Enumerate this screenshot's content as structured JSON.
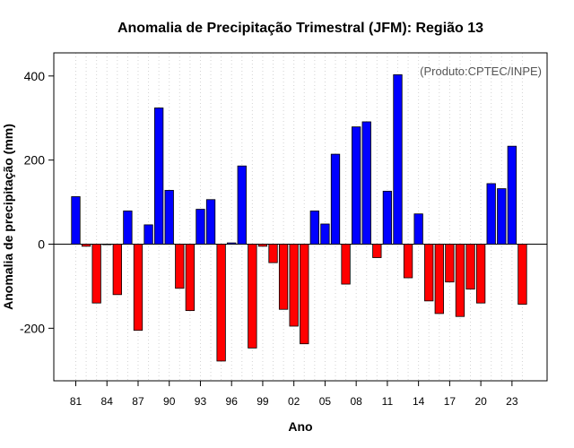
{
  "chart_data": {
    "type": "bar",
    "title": "Anomalia de Precipitação Trimestral (JFM): Região 13",
    "xlabel": "Ano",
    "ylabel": "Anomalia de precipitação (mm)",
    "annotation": "(Produto:CPTEC/INPE)",
    "annotation_position": "top-right",
    "ylim": [
      -325,
      455
    ],
    "yticks": [
      -200,
      0,
      200,
      400
    ],
    "xtick_labels": [
      "81",
      "84",
      "87",
      "90",
      "93",
      "96",
      "99",
      "02",
      "05",
      "08",
      "11",
      "14",
      "17",
      "20",
      "23"
    ],
    "xtick_every": 3,
    "grid": "vertical dotted",
    "positive_color": "#0000ff",
    "negative_color": "#ff0000",
    "categories": [
      "1981",
      "1982",
      "1983",
      "1984",
      "1985",
      "1986",
      "1987",
      "1988",
      "1989",
      "1990",
      "1991",
      "1992",
      "1993",
      "1994",
      "1995",
      "1996",
      "1997",
      "1998",
      "1999",
      "2000",
      "2001",
      "2002",
      "2003",
      "2004",
      "2005",
      "2006",
      "2007",
      "2008",
      "2009",
      "2010",
      "2011",
      "2012",
      "2013",
      "2014",
      "2015",
      "2016",
      "2017",
      "2018",
      "2019",
      "2020",
      "2021",
      "2022",
      "2023",
      "2024"
    ],
    "values": [
      113,
      -5,
      -140,
      0,
      -120,
      79,
      -205,
      46,
      324,
      128,
      -105,
      -158,
      83,
      106,
      -278,
      3,
      186,
      -247,
      -5,
      -44,
      -155,
      -195,
      -237,
      79,
      48,
      214,
      -95,
      279,
      291,
      -32,
      126,
      403,
      -80,
      72,
      -135,
      -165,
      -90,
      -172,
      -107,
      -140,
      144,
      132,
      233,
      -143
    ]
  }
}
